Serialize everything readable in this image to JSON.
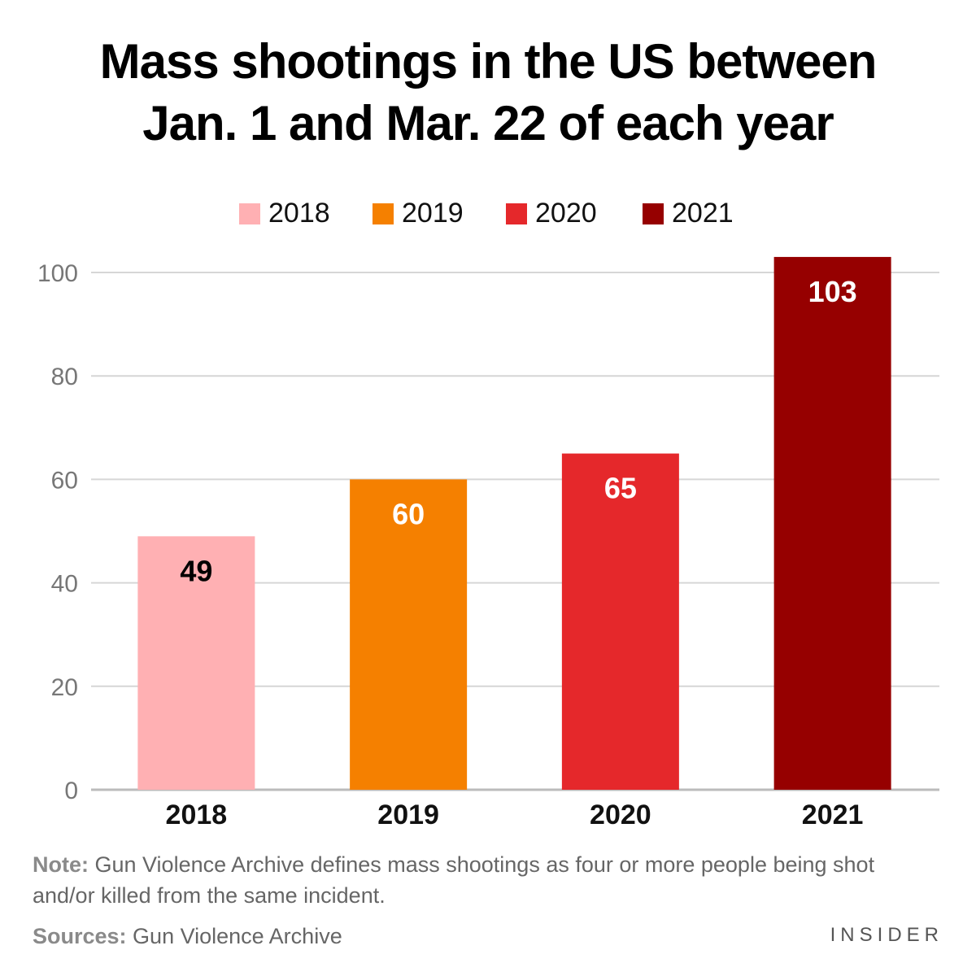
{
  "title_lines": [
    "Mass shootings in the US between",
    "Jan. 1 and Mar. 22 of each year"
  ],
  "legend": [
    {
      "label": "2018",
      "color": "#ffb0b3"
    },
    {
      "label": "2019",
      "color": "#f58000"
    },
    {
      "label": "2020",
      "color": "#e5282b"
    },
    {
      "label": "2021",
      "color": "#960000"
    }
  ],
  "chart_data": {
    "type": "bar",
    "categories": [
      "2018",
      "2019",
      "2020",
      "2021"
    ],
    "values": [
      49,
      60,
      65,
      103
    ],
    "colors": [
      "#ffb0b3",
      "#f58000",
      "#e5282b",
      "#960000"
    ],
    "label_colors": [
      "#000000",
      "#ffffff",
      "#ffffff",
      "#ffffff"
    ],
    "ylim": [
      0,
      100
    ],
    "yticks": [
      0,
      20,
      40,
      60,
      80,
      100
    ],
    "grid": true,
    "legend_position": "top-center"
  },
  "footer": {
    "note_label": "Note:",
    "note_text": " Gun Violence Archive defines mass shootings as four or more people being shot and/or killed from the same incident.",
    "sources_label": "Sources:",
    "sources_text": " Gun Violence Archive",
    "brand": "INSIDER"
  }
}
